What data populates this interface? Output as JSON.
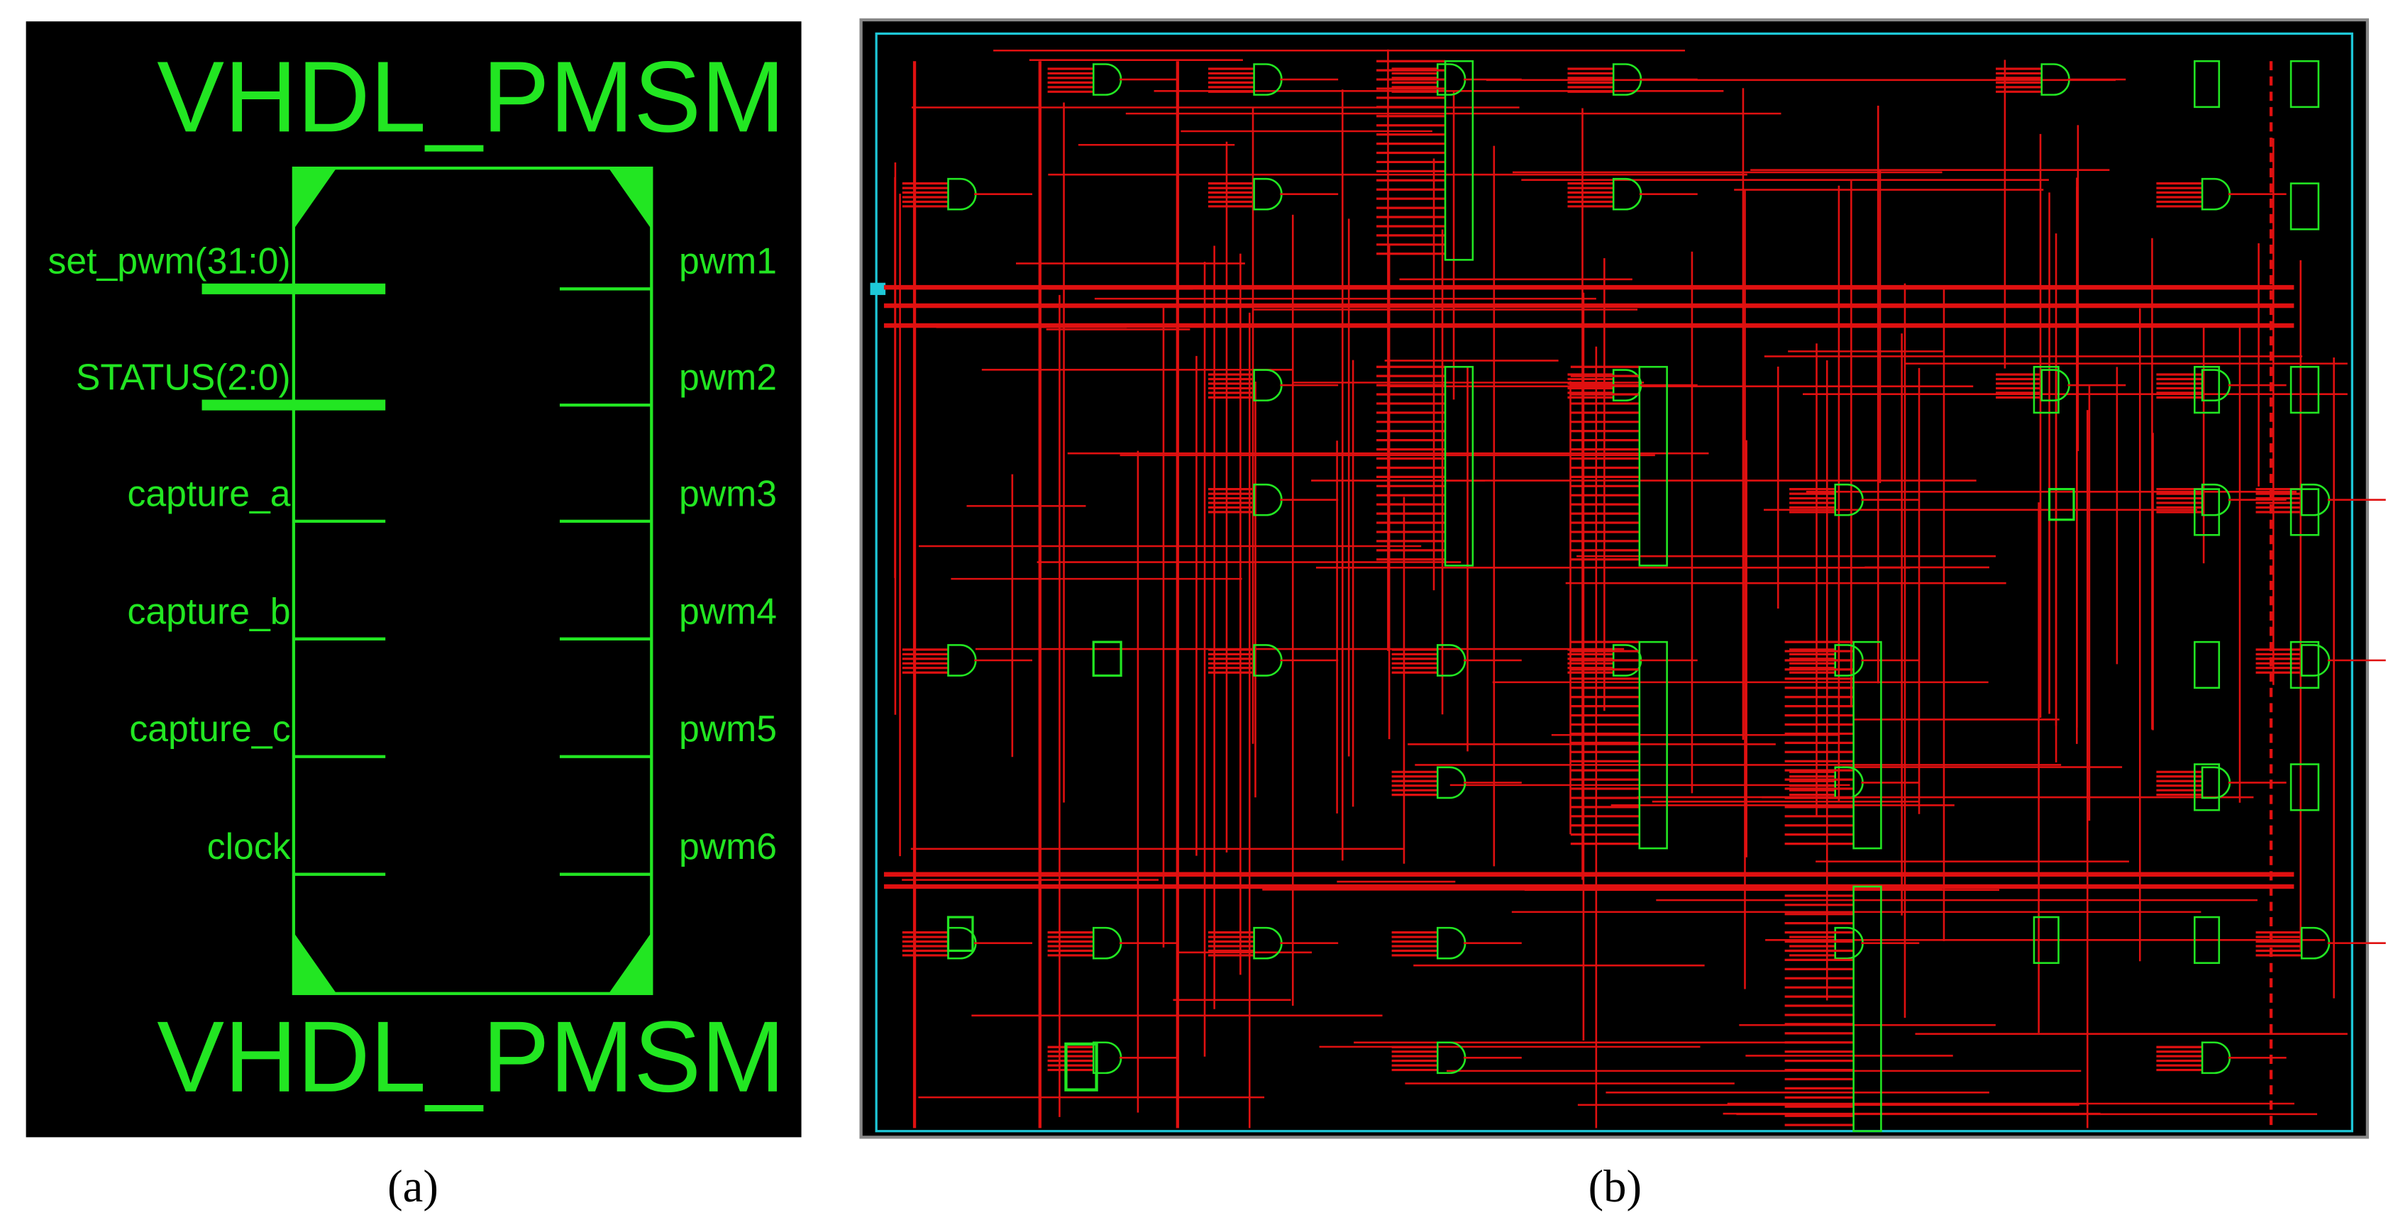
{
  "panel_a": {
    "title_top": "VHDL_PMSM",
    "title_bottom": "VHDL_PMSM",
    "inputs": [
      "set_pwm(31:0)",
      "STATUS(2:0)",
      "capture_a",
      "capture_b",
      "capture_c",
      "clock"
    ],
    "outputs": [
      "pwm1",
      "pwm2",
      "pwm3",
      "pwm4",
      "pwm5",
      "pwm6"
    ]
  },
  "captions": [
    "(a)",
    "(b)"
  ]
}
